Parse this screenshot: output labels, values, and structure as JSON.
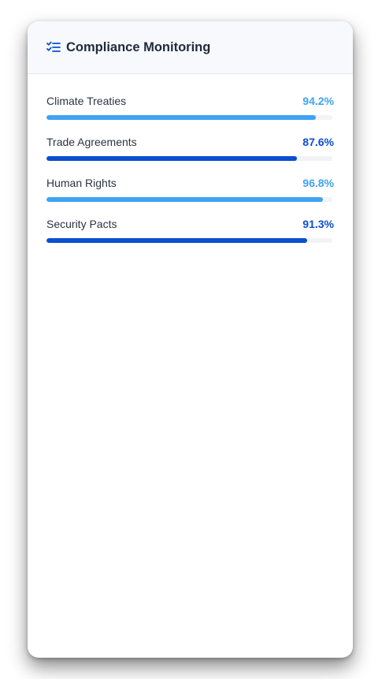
{
  "panel": {
    "title": "Compliance Monitoring",
    "icon": "checklist-icon"
  },
  "colors": {
    "light_blue": "#3fa3f2",
    "dark_blue": "#0b4fcf"
  },
  "items": [
    {
      "label": "Climate Treaties",
      "value": "94.2%",
      "percent": 94.2,
      "color": "#3fa3f2"
    },
    {
      "label": "Trade Agreements",
      "value": "87.6%",
      "percent": 87.6,
      "color": "#0b4fcf"
    },
    {
      "label": "Human Rights",
      "value": "96.8%",
      "percent": 96.8,
      "color": "#3fa3f2"
    },
    {
      "label": "Security Pacts",
      "value": "91.3%",
      "percent": 91.3,
      "color": "#0b4fcf"
    }
  ]
}
